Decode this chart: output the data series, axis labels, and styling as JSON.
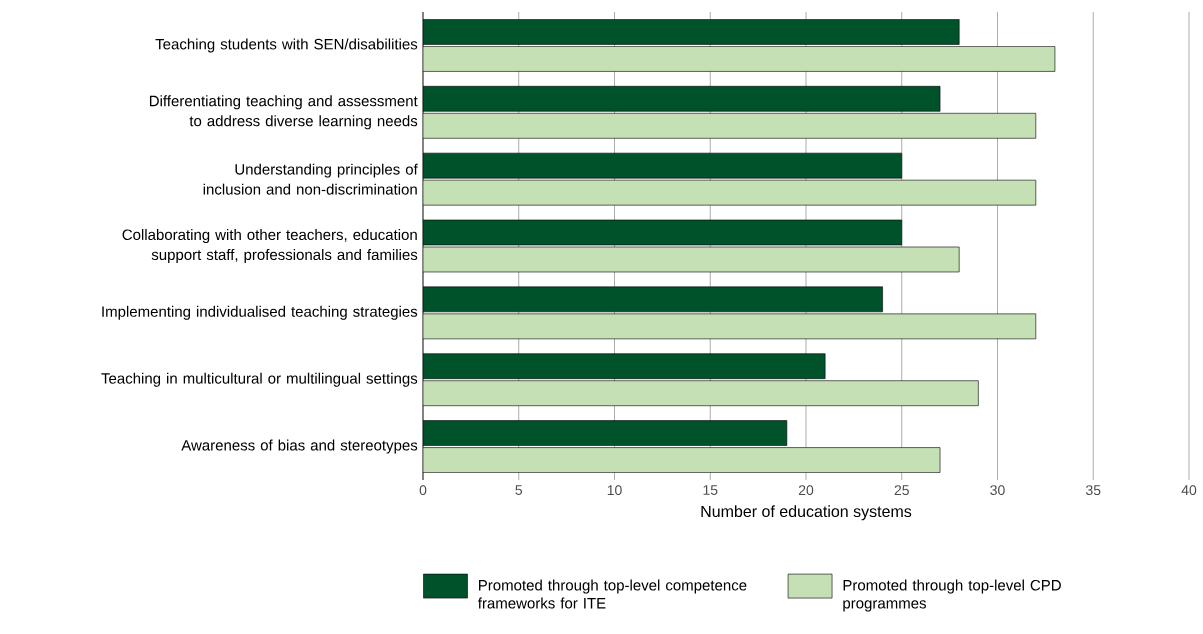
{
  "chart_data": {
    "type": "bar",
    "orientation": "horizontal",
    "xlabel": "Number of education systems",
    "categories": [
      "Teaching students with SEN/disabilities",
      "Differentiating teaching and assessment to address diverse learning needs",
      "Understanding principles of inclusion and non-discrimination",
      "Collaborating with other teachers, education support staff, professionals and families",
      "Implementing individualised teaching strategies",
      "Teaching in multicultural or multilingual settings",
      "Awareness of bias and stereotypes"
    ],
    "series": [
      {
        "name": "Promoted through top-level competence frameworks for ITE",
        "color": "#00522a",
        "values": [
          28,
          27,
          25,
          25,
          24,
          21,
          19
        ]
      },
      {
        "name": "Promoted through top-level CPD programmes",
        "color": "#c5e0b4",
        "values": [
          33,
          32,
          32,
          28,
          32,
          29,
          27
        ]
      }
    ],
    "xlim": [
      0,
      40
    ],
    "xticks": [
      0,
      5,
      10,
      15,
      20,
      25,
      30,
      35,
      40
    ],
    "grid": "x",
    "legend": "bottom"
  }
}
